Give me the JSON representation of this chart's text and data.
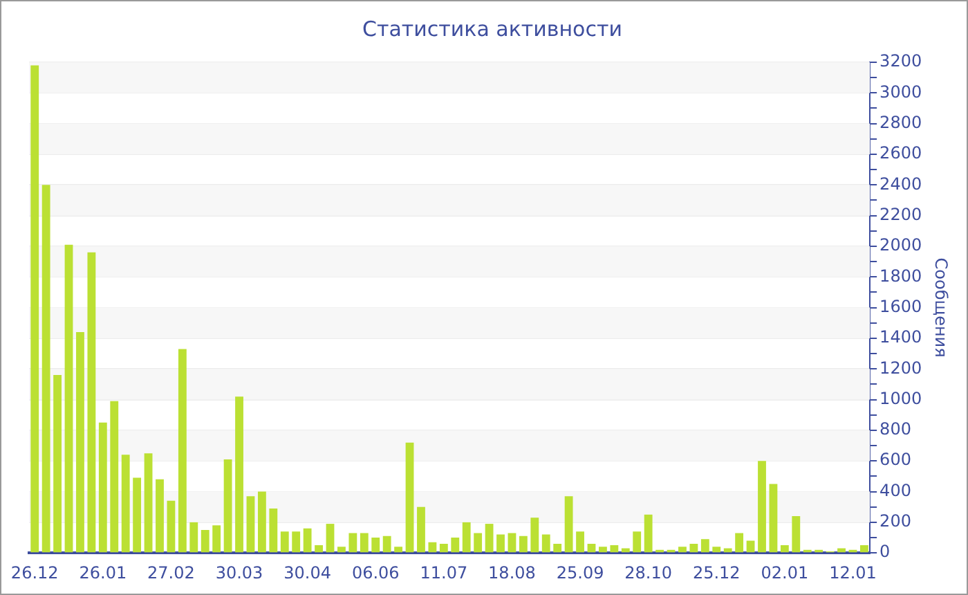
{
  "chart_data": {
    "type": "bar",
    "title": "Статистика активности",
    "ylabel": "Сообщения",
    "categories": [
      "26.12",
      null,
      null,
      null,
      null,
      null,
      "26.01",
      null,
      null,
      null,
      null,
      null,
      "27.02",
      null,
      null,
      null,
      null,
      null,
      "30.03",
      null,
      null,
      null,
      null,
      null,
      "30.04",
      null,
      null,
      null,
      null,
      null,
      "06.06",
      null,
      null,
      null,
      null,
      null,
      "11.07",
      null,
      null,
      null,
      null,
      null,
      "18.08",
      null,
      null,
      null,
      null,
      null,
      "25.09",
      null,
      null,
      null,
      null,
      null,
      "28.10",
      null,
      null,
      null,
      null,
      null,
      "25.12",
      null,
      null,
      null,
      null,
      null,
      "02.01",
      null,
      null,
      null,
      null,
      null,
      "12.01",
      null
    ],
    "values": [
      3180,
      2400,
      1160,
      2010,
      1440,
      1960,
      850,
      990,
      640,
      490,
      650,
      480,
      340,
      1330,
      200,
      150,
      180,
      610,
      1020,
      370,
      400,
      290,
      140,
      140,
      160,
      50,
      190,
      40,
      130,
      130,
      100,
      110,
      40,
      720,
      300,
      70,
      60,
      100,
      200,
      130,
      190,
      120,
      130,
      110,
      230,
      120,
      60,
      370,
      140,
      60,
      40,
      50,
      30,
      140,
      250,
      20,
      20,
      40,
      60,
      90,
      40,
      30,
      130,
      80,
      600,
      450,
      50,
      240,
      20,
      20,
      10,
      30,
      20,
      50
    ],
    "color": "#bbe033",
    "ylim": [
      0,
      3200
    ],
    "yticks": [
      0,
      {
        "value": 100,
        "label": null
      },
      200,
      {
        "value": 300,
        "label": null
      },
      400,
      {
        "value": 500,
        "label": null
      },
      600,
      {
        "value": 700,
        "label": null
      },
      800,
      {
        "value": 900,
        "label": null
      },
      1000,
      {
        "value": 1100,
        "label": null
      },
      1200,
      {
        "value": 1300,
        "label": null
      },
      1400,
      {
        "value": 1500,
        "label": null
      },
      1600,
      {
        "value": 1700,
        "label": null
      },
      1800,
      {
        "value": 1900,
        "label": null
      },
      2000,
      {
        "value": 2100,
        "label": null
      },
      2200,
      {
        "value": 2300,
        "label": null
      },
      2400,
      {
        "value": 2500,
        "label": null
      },
      2600,
      {
        "value": 2700,
        "label": null
      },
      2800,
      {
        "value": 2900,
        "label": null
      },
      3000,
      {
        "value": 3100,
        "label": null
      },
      3200
    ],
    "grid": "y"
  }
}
